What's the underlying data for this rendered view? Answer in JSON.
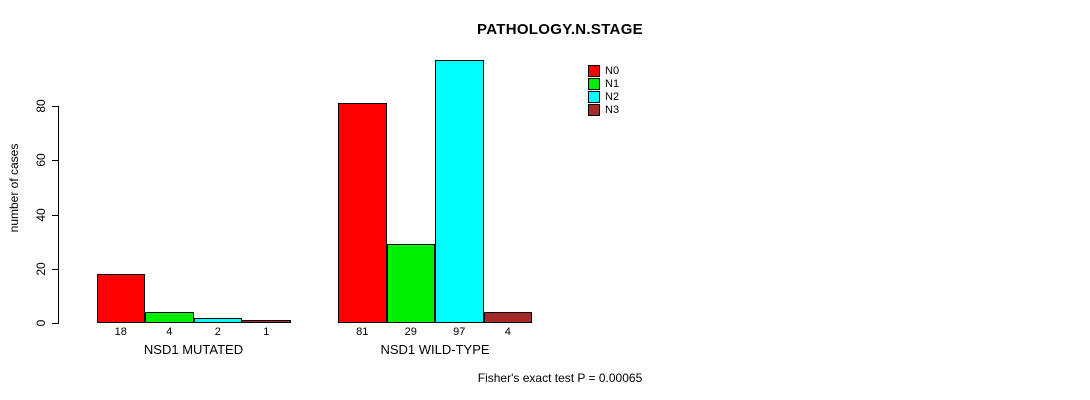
{
  "chart_data": {
    "type": "bar",
    "title": "PATHOLOGY.N.STAGE",
    "xlabel": "",
    "ylabel": "number of cases",
    "categories": [
      "NSD1 MUTATED",
      "NSD1 WILD-TYPE"
    ],
    "series": [
      {
        "name": "N0",
        "color": "#FF0000",
        "values": [
          18,
          81
        ]
      },
      {
        "name": "N1",
        "color": "#00EE00",
        "values": [
          4,
          29
        ]
      },
      {
        "name": "N2",
        "color": "#00FFFF",
        "values": [
          2,
          97
        ]
      },
      {
        "name": "N3",
        "color": "#A52A2A",
        "values": [
          1,
          4
        ]
      }
    ],
    "bar_value_labels": [
      [
        "18",
        "4",
        "2",
        "1"
      ],
      [
        "81",
        "29",
        "97",
        "4"
      ]
    ],
    "ylim": [
      0,
      80
    ],
    "yticks": [
      0,
      20,
      40,
      60,
      80
    ],
    "grid": false,
    "legend_position": "top-right",
    "legend_entries": [
      "N0",
      "N1",
      "N2",
      "N3"
    ],
    "annotation": "Fisher's exact test P = 0.00065",
    "bar_border_color": "#000000",
    "background_color": "#FFFFFF"
  }
}
